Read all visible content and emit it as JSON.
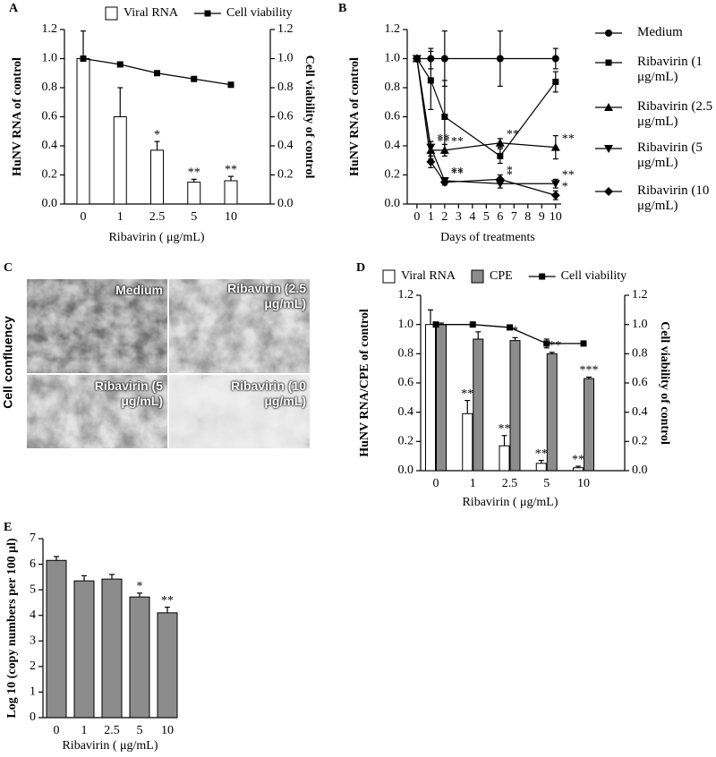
{
  "chart_data": [
    {
      "panel": "A",
      "type": "bar",
      "categories": [
        "0",
        "1",
        "2.5",
        "5",
        "10"
      ],
      "xlabel": "Ribavirin ( μg/mL)",
      "ylabel": "HuNV RNA of control",
      "y2label": "Cell viability of control",
      "ylim": [
        0,
        1.2
      ],
      "yticks": [
        {
          "value": 0,
          "label": "0.0"
        },
        0.2,
        0.4,
        0.6,
        0.8,
        {
          "value": 1,
          "label": "1.0"
        },
        1.2
      ],
      "y2lim": [
        0,
        1.2
      ],
      "y2ticks": [
        {
          "value": 0,
          "label": "0.0"
        },
        0.2,
        0.4,
        0.6,
        0.8,
        {
          "value": 1,
          "label": "1.0"
        },
        1.2
      ],
      "series": [
        {
          "name": "Viral RNA",
          "type": "bar",
          "color": "#ffffff",
          "values": [
            1.0,
            0.6,
            0.37,
            0.15,
            0.16
          ],
          "errors": [
            0.19,
            0.2,
            0.06,
            0.02,
            0.03
          ],
          "annotations": [
            null,
            null,
            "*",
            "**",
            "**"
          ]
        },
        {
          "name": "Cell viability",
          "type": "line",
          "axis": "y2",
          "color": "#000000",
          "marker": "square",
          "values": [
            1.0,
            0.96,
            0.9,
            0.86,
            0.82
          ],
          "errors": [
            0,
            0.01,
            0.015,
            0.01,
            0.01
          ]
        }
      ]
    },
    {
      "panel": "B",
      "type": "line",
      "x": [
        0,
        1,
        2,
        6,
        10
      ],
      "xlabel": "Days of treatments",
      "ylabel": "HuNV RNA of control",
      "xlim": [
        -0.7,
        10.4
      ],
      "xticks": [
        0,
        1,
        2,
        3,
        4,
        5,
        6,
        7,
        8,
        9,
        10
      ],
      "ylim": [
        0,
        1.2
      ],
      "yticks": [
        {
          "value": 0,
          "label": "0.0"
        },
        0.2,
        0.4,
        0.6,
        0.8,
        {
          "value": 1,
          "label": "1.0"
        },
        1.2
      ],
      "series": [
        {
          "name": "Medium",
          "color": "#000000",
          "marker": "circle",
          "values": [
            1,
            1,
            1,
            1,
            1
          ],
          "errors": [
            0,
            0.07,
            0.19,
            0.19,
            0.07
          ],
          "annotations": [
            null,
            null,
            null,
            null,
            null
          ]
        },
        {
          "name": "Ribavirin (1 μg/mL)",
          "color": "#000000",
          "marker": "square",
          "values": [
            1,
            0.85,
            0.6,
            0.33,
            0.84
          ],
          "errors": [
            0,
            0.2,
            0.25,
            0.05,
            0.07
          ],
          "annotations": [
            null,
            null,
            null,
            null,
            null
          ]
        },
        {
          "name": "Ribavirin (2.5 μg/mL)",
          "color": "#000000",
          "marker": "triangle-up",
          "values": [
            1,
            0.37,
            0.37,
            0.42,
            0.39
          ],
          "errors": [
            0,
            0.06,
            0.04,
            0.03,
            0.08
          ],
          "annotations": [
            null,
            "**",
            "**",
            "**",
            "**"
          ]
        },
        {
          "name": "Ribavirin (5 μg/mL)",
          "color": "#000000",
          "marker": "triangle-down",
          "values": [
            1,
            0.39,
            0.16,
            0.14,
            0.14
          ],
          "errors": [
            0,
            0.04,
            0.02,
            0.03,
            0.03
          ],
          "annotations": [
            null,
            "**",
            "**",
            "*",
            "**"
          ]
        },
        {
          "name": "Ribavirin (10 μg/mL)",
          "color": "#000000",
          "marker": "diamond",
          "values": [
            1,
            0.29,
            0.15,
            0.17,
            0.06
          ],
          "errors": [
            0,
            0.04,
            0.02,
            0.03,
            0.03
          ],
          "annotations": [
            null,
            null,
            "**",
            "*",
            "*"
          ]
        }
      ]
    },
    {
      "panel": "C",
      "type": "image",
      "ylabel": "Cell confluency",
      "images": [
        {
          "label": "Medium"
        },
        {
          "label": "Ribavirin (2.5 μg/mL)"
        },
        {
          "label": "Ribavirin (5 μg/mL)"
        },
        {
          "label": "Ribavirin (10 μg/mL)"
        }
      ]
    },
    {
      "panel": "D",
      "type": "bar",
      "categories": [
        "0",
        "1",
        "2.5",
        "5",
        "10"
      ],
      "xlabel": "Ribavirin ( μg/mL)",
      "ylabel": "HuNV RNA/CPE of control",
      "y2label": "Cell viability of control",
      "ylim": [
        0,
        1.2
      ],
      "yticks": [
        {
          "value": 0,
          "label": "0.0"
        },
        0.2,
        0.4,
        0.6,
        0.8,
        {
          "value": 1,
          "label": "1.0"
        },
        1.2
      ],
      "y2lim": [
        0,
        1.2
      ],
      "y2ticks": [
        {
          "value": 0,
          "label": "0.0"
        },
        0.2,
        0.4,
        0.6,
        0.8,
        {
          "value": 1,
          "label": "1.0"
        },
        1.2
      ],
      "series": [
        {
          "name": "Viral RNA",
          "type": "bar",
          "color": "#ffffff",
          "values": [
            1.0,
            0.39,
            0.17,
            0.05,
            0.02
          ],
          "errors": [
            0.1,
            0.09,
            0.07,
            0.02,
            0.01
          ],
          "annotations": [
            null,
            "**",
            "**",
            "**",
            "**"
          ]
        },
        {
          "name": "CPE",
          "type": "bar",
          "color": "#8c8c8c",
          "values": [
            1.0,
            0.9,
            0.89,
            0.8,
            0.63
          ],
          "errors": [
            0.01,
            0.05,
            0.02,
            0.01,
            0.01
          ],
          "annotations": [
            null,
            null,
            "*",
            "***",
            "***"
          ]
        },
        {
          "name": "Cell viability",
          "type": "line",
          "axis": "y2",
          "color": "#000000",
          "marker": "square",
          "values": [
            1.0,
            1.0,
            0.98,
            0.87,
            0.87
          ],
          "errors": [
            0,
            0,
            0,
            0.03,
            0
          ]
        }
      ]
    },
    {
      "panel": "E",
      "type": "bar",
      "categories": [
        "0",
        "1",
        "2.5",
        "5",
        "10"
      ],
      "xlabel": "Ribavirin ( μg/mL)",
      "ylabel": "Log 10 (copy numbers per 100 μl)",
      "ylim": [
        0,
        7
      ],
      "yticks": [
        0,
        1,
        2,
        3,
        4,
        5,
        6,
        7
      ],
      "series": [
        {
          "type": "bar",
          "color": "#8c8c8c",
          "values": [
            6.15,
            5.35,
            5.42,
            4.72,
            4.1
          ],
          "errors": [
            0.15,
            0.2,
            0.18,
            0.15,
            0.22
          ],
          "annotations": [
            null,
            null,
            null,
            "*",
            "**"
          ]
        }
      ]
    }
  ]
}
